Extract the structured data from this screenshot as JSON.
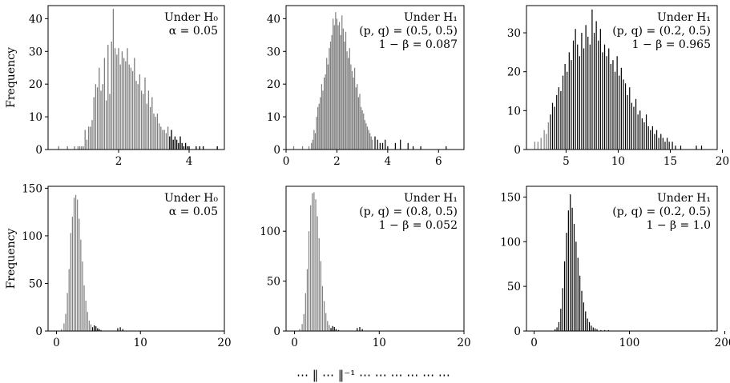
{
  "figure": {
    "caption_fragment": "⋯  ‖ ⋯ ‖⁻¹ ⋯ ⋯ ⋯ ⋯ ⋯ ⋯"
  },
  "colors": {
    "bar_h0": "#7f7f7f",
    "bar_h1": "#000000",
    "axis": "#000000"
  },
  "chart_data": [
    {
      "type": "bar",
      "xlim": [
        0.0,
        5.0
      ],
      "ylim": [
        0,
        44
      ],
      "xticks": [
        2,
        4
      ],
      "yticks": [
        0,
        10,
        20,
        30,
        40
      ],
      "ylabel": "Frequency",
      "annotation": [
        "Under H₀",
        "α = 0.05"
      ],
      "critical_value": 3.45,
      "bars": [
        [
          0.3,
          1
        ],
        [
          0.55,
          1
        ],
        [
          0.75,
          1
        ],
        [
          0.85,
          1
        ],
        [
          0.9,
          1
        ],
        [
          0.95,
          1
        ],
        [
          1.0,
          1
        ],
        [
          1.05,
          6
        ],
        [
          1.1,
          3
        ],
        [
          1.15,
          7
        ],
        [
          1.2,
          7
        ],
        [
          1.25,
          9
        ],
        [
          1.3,
          16
        ],
        [
          1.35,
          20
        ],
        [
          1.4,
          19
        ],
        [
          1.45,
          25
        ],
        [
          1.5,
          18
        ],
        [
          1.55,
          20
        ],
        [
          1.6,
          28
        ],
        [
          1.65,
          15
        ],
        [
          1.7,
          32
        ],
        [
          1.75,
          17
        ],
        [
          1.8,
          33
        ],
        [
          1.85,
          43
        ],
        [
          1.9,
          31
        ],
        [
          1.95,
          29
        ],
        [
          2.0,
          31
        ],
        [
          2.05,
          26
        ],
        [
          2.1,
          30
        ],
        [
          2.15,
          28
        ],
        [
          2.2,
          27
        ],
        [
          2.25,
          31
        ],
        [
          2.3,
          26
        ],
        [
          2.35,
          25
        ],
        [
          2.4,
          24
        ],
        [
          2.45,
          28
        ],
        [
          2.5,
          21
        ],
        [
          2.55,
          20
        ],
        [
          2.6,
          23
        ],
        [
          2.65,
          18
        ],
        [
          2.7,
          17
        ],
        [
          2.75,
          22
        ],
        [
          2.8,
          14
        ],
        [
          2.85,
          18
        ],
        [
          2.9,
          13
        ],
        [
          2.95,
          16
        ],
        [
          3.0,
          11
        ],
        [
          3.05,
          10
        ],
        [
          3.1,
          11
        ],
        [
          3.15,
          8
        ],
        [
          3.2,
          7
        ],
        [
          3.25,
          6
        ],
        [
          3.3,
          6
        ],
        [
          3.35,
          5
        ],
        [
          3.4,
          7
        ],
        [
          3.45,
          4
        ],
        [
          3.5,
          6
        ],
        [
          3.55,
          3
        ],
        [
          3.6,
          4
        ],
        [
          3.65,
          3
        ],
        [
          3.7,
          2
        ],
        [
          3.75,
          4
        ],
        [
          3.8,
          2
        ],
        [
          3.85,
          1
        ],
        [
          3.9,
          2
        ],
        [
          3.95,
          1
        ],
        [
          4.0,
          1
        ],
        [
          4.2,
          1
        ],
        [
          4.3,
          1
        ],
        [
          4.4,
          1
        ],
        [
          4.8,
          1
        ]
      ]
    },
    {
      "type": "bar",
      "xlim": [
        0.0,
        7.0
      ],
      "ylim": [
        0,
        44
      ],
      "xticks": [
        0,
        2,
        4,
        6
      ],
      "yticks": [
        0,
        10,
        20,
        30,
        40
      ],
      "annotation": [
        "Under H₁",
        "(p, q) = (0.5, 0.5)",
        "1 − β = 0.087"
      ],
      "critical_value": 3.45,
      "bars": [
        [
          0.3,
          1
        ],
        [
          0.65,
          1
        ],
        [
          0.9,
          1
        ],
        [
          1.0,
          2
        ],
        [
          1.05,
          3
        ],
        [
          1.1,
          6
        ],
        [
          1.15,
          5
        ],
        [
          1.2,
          10
        ],
        [
          1.25,
          13
        ],
        [
          1.3,
          14
        ],
        [
          1.35,
          16
        ],
        [
          1.4,
          20
        ],
        [
          1.45,
          18
        ],
        [
          1.5,
          22
        ],
        [
          1.55,
          23
        ],
        [
          1.6,
          28
        ],
        [
          1.65,
          26
        ],
        [
          1.7,
          31
        ],
        [
          1.75,
          33
        ],
        [
          1.8,
          35
        ],
        [
          1.85,
          40
        ],
        [
          1.9,
          38
        ],
        [
          1.95,
          42
        ],
        [
          2.0,
          40
        ],
        [
          2.05,
          38
        ],
        [
          2.1,
          39
        ],
        [
          2.15,
          35
        ],
        [
          2.2,
          41
        ],
        [
          2.25,
          37
        ],
        [
          2.3,
          33
        ],
        [
          2.35,
          36
        ],
        [
          2.4,
          30
        ],
        [
          2.45,
          28
        ],
        [
          2.5,
          31
        ],
        [
          2.55,
          26
        ],
        [
          2.6,
          24
        ],
        [
          2.65,
          22
        ],
        [
          2.7,
          25
        ],
        [
          2.75,
          19
        ],
        [
          2.8,
          20
        ],
        [
          2.85,
          16
        ],
        [
          2.9,
          17
        ],
        [
          2.95,
          13
        ],
        [
          3.0,
          12
        ],
        [
          3.05,
          11
        ],
        [
          3.1,
          9
        ],
        [
          3.15,
          8
        ],
        [
          3.2,
          7
        ],
        [
          3.25,
          6
        ],
        [
          3.3,
          5
        ],
        [
          3.35,
          4
        ],
        [
          3.4,
          3
        ],
        [
          3.5,
          4
        ],
        [
          3.6,
          3
        ],
        [
          3.7,
          2
        ],
        [
          3.8,
          2
        ],
        [
          3.9,
          3
        ],
        [
          4.0,
          1
        ],
        [
          4.3,
          2
        ],
        [
          4.5,
          3
        ],
        [
          4.8,
          2
        ],
        [
          5.0,
          1
        ],
        [
          5.3,
          1
        ],
        [
          6.3,
          1
        ]
      ]
    },
    {
      "type": "bar",
      "xlim": [
        1.2,
        19.5
      ],
      "ylim": [
        0,
        37
      ],
      "xticks": [
        5,
        10,
        15,
        20
      ],
      "yticks": [
        0,
        10,
        20,
        30
      ],
      "annotation": [
        "Under H₁",
        "(p, q) = (0.2, 0.5)",
        "1 − β = 0.965"
      ],
      "critical_value": 3.45,
      "bars": [
        [
          2.0,
          2
        ],
        [
          2.3,
          2
        ],
        [
          2.6,
          3
        ],
        [
          2.9,
          5
        ],
        [
          3.1,
          4
        ],
        [
          3.3,
          7
        ],
        [
          3.5,
          9
        ],
        [
          3.7,
          12
        ],
        [
          3.9,
          11
        ],
        [
          4.1,
          14
        ],
        [
          4.3,
          16
        ],
        [
          4.5,
          15
        ],
        [
          4.7,
          19
        ],
        [
          4.9,
          22
        ],
        [
          5.1,
          20
        ],
        [
          5.3,
          25
        ],
        [
          5.5,
          23
        ],
        [
          5.7,
          28
        ],
        [
          5.9,
          31
        ],
        [
          6.1,
          27
        ],
        [
          6.3,
          24
        ],
        [
          6.5,
          30
        ],
        [
          6.7,
          26
        ],
        [
          6.9,
          32
        ],
        [
          7.1,
          29
        ],
        [
          7.3,
          27
        ],
        [
          7.5,
          36
        ],
        [
          7.7,
          30
        ],
        [
          7.9,
          33
        ],
        [
          8.1,
          28
        ],
        [
          8.3,
          31
        ],
        [
          8.5,
          25
        ],
        [
          8.7,
          27
        ],
        [
          8.9,
          24
        ],
        [
          9.1,
          26
        ],
        [
          9.3,
          22
        ],
        [
          9.5,
          23
        ],
        [
          9.7,
          20
        ],
        [
          9.9,
          24
        ],
        [
          10.1,
          19
        ],
        [
          10.3,
          21
        ],
        [
          10.5,
          18
        ],
        [
          10.7,
          17
        ],
        [
          10.9,
          14
        ],
        [
          11.1,
          16
        ],
        [
          11.3,
          12
        ],
        [
          11.5,
          11
        ],
        [
          11.7,
          13
        ],
        [
          11.9,
          9
        ],
        [
          12.1,
          10
        ],
        [
          12.3,
          8
        ],
        [
          12.5,
          7
        ],
        [
          12.7,
          9
        ],
        [
          12.9,
          6
        ],
        [
          13.1,
          5
        ],
        [
          13.3,
          6
        ],
        [
          13.5,
          4
        ],
        [
          13.7,
          5
        ],
        [
          13.9,
          3
        ],
        [
          14.1,
          4
        ],
        [
          14.3,
          3
        ],
        [
          14.5,
          2
        ],
        [
          14.7,
          3
        ],
        [
          14.9,
          2
        ],
        [
          15.2,
          2
        ],
        [
          15.5,
          1
        ],
        [
          16.0,
          1
        ],
        [
          17.5,
          1
        ],
        [
          18.0,
          1
        ]
      ]
    },
    {
      "type": "bar",
      "xlim": [
        -1.0,
        20.0
      ],
      "ylim": [
        0,
        152
      ],
      "xticks": [
        0,
        10,
        20
      ],
      "yticks": [
        0,
        50,
        100,
        150
      ],
      "ylabel": "Frequency",
      "annotation": [
        "Under H₀",
        "α = 0.05"
      ],
      "critical_value": 4.3,
      "bars": [
        [
          0.6,
          2
        ],
        [
          0.9,
          8
        ],
        [
          1.1,
          18
        ],
        [
          1.3,
          40
        ],
        [
          1.5,
          65
        ],
        [
          1.7,
          103
        ],
        [
          1.9,
          120
        ],
        [
          2.1,
          140
        ],
        [
          2.3,
          143
        ],
        [
          2.5,
          138
        ],
        [
          2.7,
          118
        ],
        [
          2.9,
          96
        ],
        [
          3.1,
          73
        ],
        [
          3.3,
          48
        ],
        [
          3.5,
          32
        ],
        [
          3.7,
          20
        ],
        [
          3.9,
          11
        ],
        [
          4.1,
          7
        ],
        [
          4.3,
          4
        ],
        [
          4.5,
          6
        ],
        [
          4.7,
          5
        ],
        [
          4.9,
          3
        ],
        [
          5.1,
          2
        ],
        [
          5.3,
          1
        ],
        [
          7.3,
          3
        ],
        [
          7.6,
          4
        ],
        [
          7.9,
          2
        ]
      ]
    },
    {
      "type": "bar",
      "xlim": [
        -1.0,
        20.0
      ],
      "ylim": [
        0,
        145
      ],
      "xticks": [
        0,
        10,
        20
      ],
      "yticks": [
        0,
        50,
        100
      ],
      "annotation": [
        "Under H₁",
        "(p, q) = (0.8, 0.5)",
        "1 − β = 0.052"
      ],
      "critical_value": 4.3,
      "bars": [
        [
          0.6,
          2
        ],
        [
          0.9,
          7
        ],
        [
          1.1,
          17
        ],
        [
          1.3,
          38
        ],
        [
          1.5,
          62
        ],
        [
          1.7,
          100
        ],
        [
          1.9,
          126
        ],
        [
          2.1,
          138
        ],
        [
          2.3,
          139
        ],
        [
          2.5,
          132
        ],
        [
          2.7,
          115
        ],
        [
          2.9,
          93
        ],
        [
          3.1,
          70
        ],
        [
          3.3,
          45
        ],
        [
          3.5,
          30
        ],
        [
          3.7,
          18
        ],
        [
          3.9,
          10
        ],
        [
          4.1,
          6
        ],
        [
          4.3,
          3
        ],
        [
          4.5,
          5
        ],
        [
          4.7,
          4
        ],
        [
          4.9,
          2
        ],
        [
          5.2,
          1
        ],
        [
          7.4,
          3
        ],
        [
          7.7,
          4
        ],
        [
          8.0,
          2
        ]
      ]
    },
    {
      "type": "bar",
      "xlim": [
        -8.0,
        192.0
      ],
      "ylim": [
        0,
        162
      ],
      "xticks": [
        0,
        100,
        200
      ],
      "yticks": [
        0,
        50,
        100,
        150
      ],
      "annotation": [
        "Under H₁",
        "(p, q) = (0.2, 0.5)",
        "1 − β = 1.0"
      ],
      "critical_value": 4.3,
      "bars": [
        [
          22,
          2
        ],
        [
          24,
          4
        ],
        [
          26,
          10
        ],
        [
          28,
          25
        ],
        [
          30,
          48
        ],
        [
          32,
          78
        ],
        [
          34,
          110
        ],
        [
          36,
          135
        ],
        [
          38,
          153
        ],
        [
          40,
          138
        ],
        [
          42,
          120
        ],
        [
          44,
          100
        ],
        [
          46,
          82
        ],
        [
          48,
          62
        ],
        [
          50,
          45
        ],
        [
          52,
          32
        ],
        [
          54,
          22
        ],
        [
          56,
          14
        ],
        [
          58,
          10
        ],
        [
          60,
          6
        ],
        [
          62,
          4
        ],
        [
          64,
          3
        ],
        [
          66,
          2
        ],
        [
          70,
          1
        ],
        [
          74,
          1
        ],
        [
          78,
          1
        ],
        [
          186,
          1
        ]
      ]
    }
  ]
}
